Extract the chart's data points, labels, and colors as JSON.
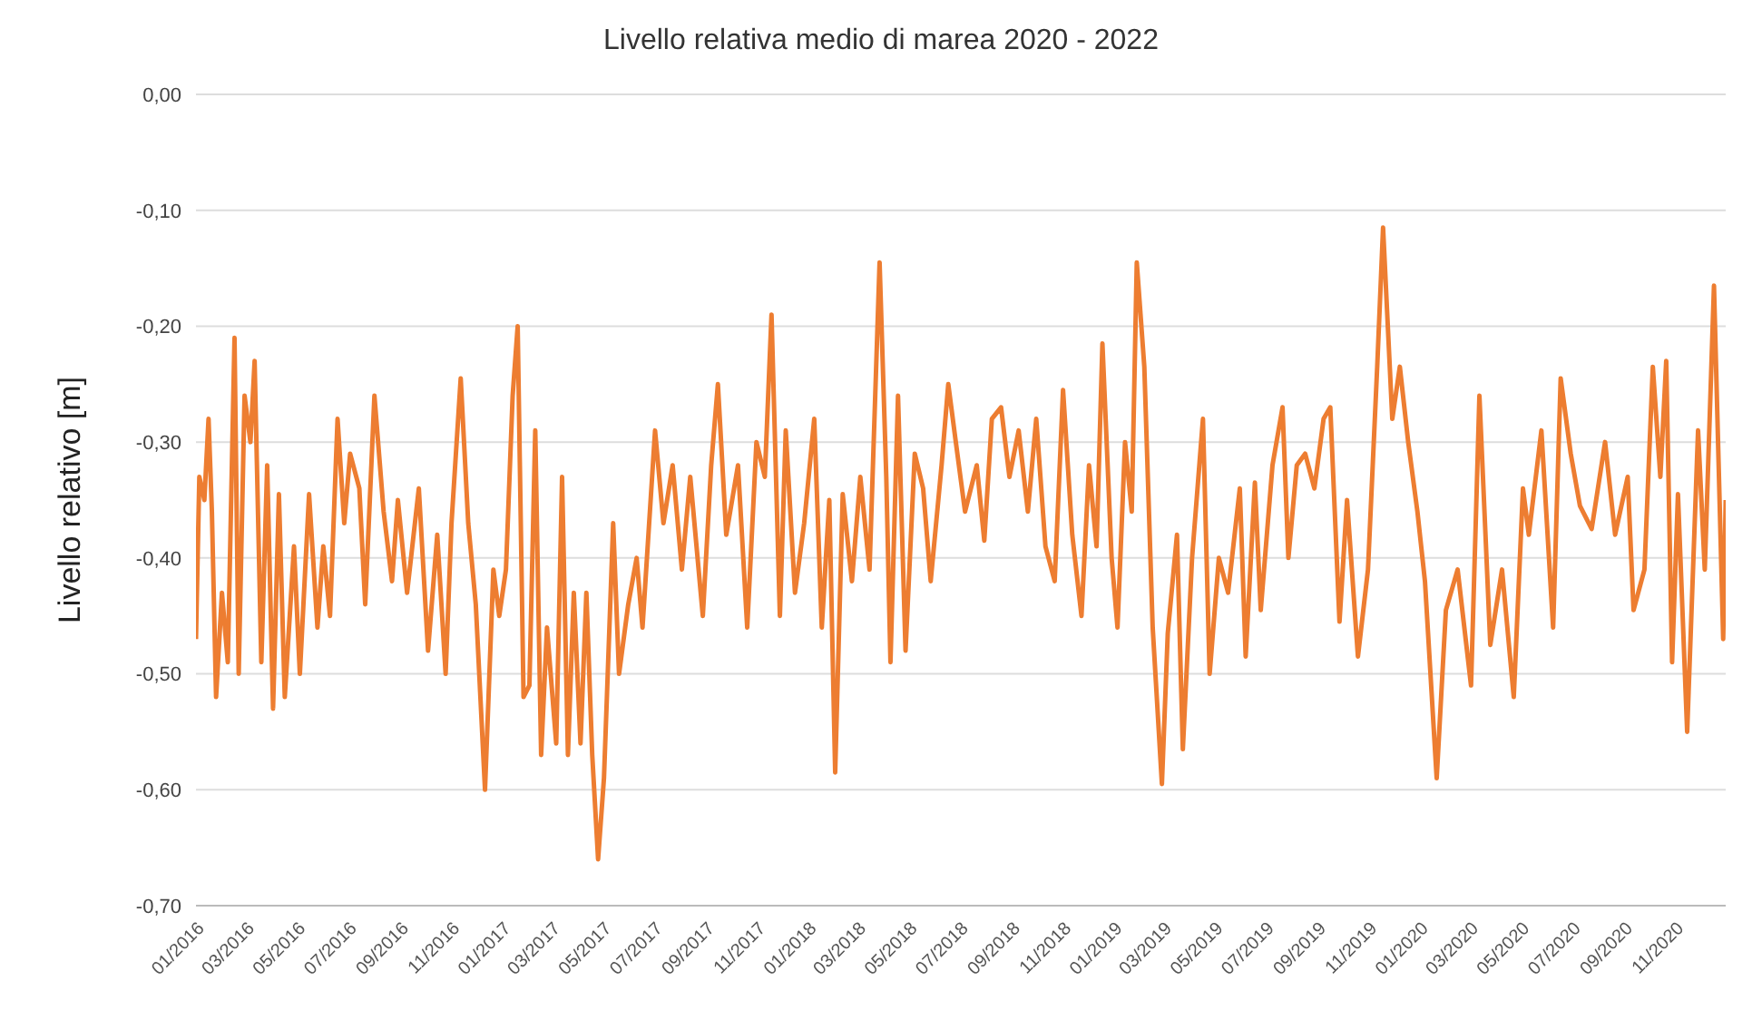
{
  "chart_data": {
    "type": "line",
    "title": "Livello relativa medio di marea 2020 - 2022",
    "ylabel": "Livello relativo [m]",
    "grid": "y",
    "marker": "none",
    "line_style": "solid",
    "ylim": [
      -0.7,
      0
    ],
    "yticks": [
      {
        "value": 0,
        "label": "0,00"
      },
      {
        "value": -0.1,
        "label": "-0,10"
      },
      {
        "value": -0.2,
        "label": "-0,20"
      },
      {
        "value": -0.3,
        "label": "-0,30"
      },
      {
        "value": -0.4,
        "label": "-0,40"
      },
      {
        "value": -0.5,
        "label": "-0,50"
      },
      {
        "value": -0.6,
        "label": "-0,60"
      },
      {
        "value": -0.7,
        "label": "-0,70"
      }
    ],
    "xlim": [
      "2016-01-01",
      "2020-12-31"
    ],
    "xticks": [
      {
        "value": "2016-01",
        "label": "01/2016"
      },
      {
        "value": "2016-03",
        "label": "03/2016"
      },
      {
        "value": "2016-05",
        "label": "05/2016"
      },
      {
        "value": "2016-07",
        "label": "07/2016"
      },
      {
        "value": "2016-09",
        "label": "09/2016"
      },
      {
        "value": "2016-11",
        "label": "11/2016"
      },
      {
        "value": "2017-01",
        "label": "01/2017"
      },
      {
        "value": "2017-03",
        "label": "03/2017"
      },
      {
        "value": "2017-05",
        "label": "05/2017"
      },
      {
        "value": "2017-07",
        "label": "07/2017"
      },
      {
        "value": "2017-09",
        "label": "09/2017"
      },
      {
        "value": "2017-11",
        "label": "11/2017"
      },
      {
        "value": "2018-01",
        "label": "01/2018"
      },
      {
        "value": "2018-03",
        "label": "03/2018"
      },
      {
        "value": "2018-05",
        "label": "05/2018"
      },
      {
        "value": "2018-07",
        "label": "07/2018"
      },
      {
        "value": "2018-09",
        "label": "09/2018"
      },
      {
        "value": "2018-11",
        "label": "11/2018"
      },
      {
        "value": "2019-01",
        "label": "01/2019"
      },
      {
        "value": "2019-03",
        "label": "03/2019"
      },
      {
        "value": "2019-05",
        "label": "05/2019"
      },
      {
        "value": "2019-07",
        "label": "07/2019"
      },
      {
        "value": "2019-09",
        "label": "09/2019"
      },
      {
        "value": "2019-11",
        "label": "11/2019"
      },
      {
        "value": "2020-01",
        "label": "01/2020"
      },
      {
        "value": "2020-03",
        "label": "03/2020"
      },
      {
        "value": "2020-05",
        "label": "05/2020"
      },
      {
        "value": "2020-07",
        "label": "07/2020"
      },
      {
        "value": "2020-09",
        "label": "09/2020"
      },
      {
        "value": "2020-11",
        "label": "11/2020"
      }
    ],
    "x": [
      "2016-01-01",
      "2016-01-05",
      "2016-01-11",
      "2016-01-16",
      "2016-01-20",
      "2016-01-25",
      "2016-02-01",
      "2016-02-08",
      "2016-02-16",
      "2016-02-21",
      "2016-02-28",
      "2016-03-06",
      "2016-03-11",
      "2016-03-19",
      "2016-03-26",
      "2016-04-02",
      "2016-04-09",
      "2016-04-16",
      "2016-04-27",
      "2016-05-04",
      "2016-05-15",
      "2016-05-25",
      "2016-06-01",
      "2016-06-09",
      "2016-06-18",
      "2016-06-26",
      "2016-07-03",
      "2016-07-14",
      "2016-07-21",
      "2016-08-01",
      "2016-08-12",
      "2016-08-22",
      "2016-08-29",
      "2016-09-09",
      "2016-09-23",
      "2016-10-04",
      "2016-10-15",
      "2016-10-25",
      "2016-11-01",
      "2016-11-12",
      "2016-11-21",
      "2016-11-30",
      "2016-12-11",
      "2016-12-21",
      "2016-12-28",
      "2017-01-05",
      "2017-01-13",
      "2017-01-19",
      "2017-01-26",
      "2017-02-02",
      "2017-02-09",
      "2017-02-16",
      "2017-02-23",
      "2017-03-06",
      "2017-03-13",
      "2017-03-20",
      "2017-03-27",
      "2017-04-04",
      "2017-04-11",
      "2017-04-18",
      "2017-04-25",
      "2017-05-02",
      "2017-05-13",
      "2017-05-20",
      "2017-05-31",
      "2017-06-10",
      "2017-06-17",
      "2017-07-02",
      "2017-07-12",
      "2017-07-23",
      "2017-08-03",
      "2017-08-13",
      "2017-08-28",
      "2017-09-07",
      "2017-09-15",
      "2017-09-25",
      "2017-10-09",
      "2017-10-20",
      "2017-10-31",
      "2017-11-10",
      "2017-11-18",
      "2017-11-28",
      "2017-12-05",
      "2017-12-16",
      "2017-12-27",
      "2018-01-08",
      "2018-01-17",
      "2018-01-26",
      "2018-02-02",
      "2018-02-11",
      "2018-02-22",
      "2018-03-04",
      "2018-03-15",
      "2018-03-27",
      "2018-04-04",
      "2018-04-09",
      "2018-04-18",
      "2018-04-27",
      "2018-05-08",
      "2018-05-18",
      "2018-05-27",
      "2018-06-09",
      "2018-06-17",
      "2018-06-26",
      "2018-07-07",
      "2018-07-21",
      "2018-07-30",
      "2018-08-08",
      "2018-08-19",
      "2018-08-29",
      "2018-09-09",
      "2018-09-20",
      "2018-09-30",
      "2018-10-11",
      "2018-10-22",
      "2018-11-01",
      "2018-11-12",
      "2018-11-23",
      "2018-12-02",
      "2018-12-11",
      "2018-12-18",
      "2018-12-29",
      "2019-01-05",
      "2019-01-14",
      "2019-01-22",
      "2019-01-28",
      "2019-02-06",
      "2019-02-16",
      "2019-02-27",
      "2019-03-06",
      "2019-03-17",
      "2019-03-24",
      "2019-04-04",
      "2019-04-17",
      "2019-04-25",
      "2019-05-06",
      "2019-05-17",
      "2019-05-31",
      "2019-06-07",
      "2019-06-18",
      "2019-06-25",
      "2019-07-09",
      "2019-07-21",
      "2019-07-28",
      "2019-08-07",
      "2019-08-17",
      "2019-08-28",
      "2019-09-08",
      "2019-09-16",
      "2019-09-27",
      "2019-10-06",
      "2019-10-19",
      "2019-10-31",
      "2019-11-11",
      "2019-11-18",
      "2019-11-29",
      "2019-12-08",
      "2019-12-18",
      "2019-12-29",
      "2020-01-07",
      "2020-01-21",
      "2020-02-01",
      "2020-02-15",
      "2020-03-02",
      "2020-03-12",
      "2020-03-25",
      "2020-04-08",
      "2020-04-22",
      "2020-05-03",
      "2020-05-10",
      "2020-05-25",
      "2020-06-08",
      "2020-06-17",
      "2020-06-29",
      "2020-07-10",
      "2020-07-24",
      "2020-08-09",
      "2020-08-21",
      "2020-09-05",
      "2020-09-12",
      "2020-09-25",
      "2020-10-05",
      "2020-10-14",
      "2020-10-21",
      "2020-10-28",
      "2020-11-04",
      "2020-11-15",
      "2020-11-28",
      "2020-12-06",
      "2020-12-17",
      "2020-12-28",
      "2020-12-31"
    ],
    "series": [
      {
        "color": "#ed7d31",
        "values": [
          -0.47,
          -0.33,
          -0.35,
          -0.28,
          -0.36,
          -0.52,
          -0.43,
          -0.49,
          -0.21,
          -0.5,
          -0.26,
          -0.3,
          -0.23,
          -0.49,
          -0.32,
          -0.53,
          -0.345,
          -0.52,
          -0.39,
          -0.5,
          -0.345,
          -0.46,
          -0.39,
          -0.45,
          -0.28,
          -0.37,
          -0.31,
          -0.34,
          -0.44,
          -0.26,
          -0.36,
          -0.42,
          -0.35,
          -0.43,
          -0.34,
          -0.48,
          -0.38,
          -0.5,
          -0.37,
          -0.245,
          -0.37,
          -0.44,
          -0.6,
          -0.41,
          -0.45,
          -0.41,
          -0.26,
          -0.2,
          -0.52,
          -0.51,
          -0.29,
          -0.57,
          -0.46,
          -0.56,
          -0.33,
          -0.57,
          -0.43,
          -0.56,
          -0.43,
          -0.57,
          -0.66,
          -0.59,
          -0.37,
          -0.5,
          -0.44,
          -0.4,
          -0.46,
          -0.29,
          -0.37,
          -0.32,
          -0.41,
          -0.33,
          -0.45,
          -0.32,
          -0.25,
          -0.38,
          -0.32,
          -0.46,
          -0.3,
          -0.33,
          -0.19,
          -0.45,
          -0.29,
          -0.43,
          -0.37,
          -0.28,
          -0.46,
          -0.35,
          -0.585,
          -0.345,
          -0.42,
          -0.33,
          -0.41,
          -0.145,
          -0.33,
          -0.49,
          -0.26,
          -0.48,
          -0.31,
          -0.34,
          -0.42,
          -0.32,
          -0.25,
          -0.3,
          -0.36,
          -0.32,
          -0.385,
          -0.28,
          -0.27,
          -0.33,
          -0.29,
          -0.36,
          -0.28,
          -0.39,
          -0.42,
          -0.255,
          -0.38,
          -0.45,
          -0.32,
          -0.39,
          -0.215,
          -0.4,
          -0.46,
          -0.3,
          -0.36,
          -0.145,
          -0.235,
          -0.46,
          -0.595,
          -0.465,
          -0.38,
          -0.565,
          -0.4,
          -0.28,
          -0.5,
          -0.4,
          -0.43,
          -0.34,
          -0.485,
          -0.335,
          -0.445,
          -0.32,
          -0.27,
          -0.4,
          -0.32,
          -0.31,
          -0.34,
          -0.28,
          -0.27,
          -0.455,
          -0.35,
          -0.485,
          -0.41,
          -0.235,
          -0.115,
          -0.28,
          -0.235,
          -0.3,
          -0.36,
          -0.42,
          -0.59,
          -0.445,
          -0.41,
          -0.51,
          -0.26,
          -0.475,
          -0.41,
          -0.52,
          -0.34,
          -0.38,
          -0.29,
          -0.46,
          -0.245,
          -0.31,
          -0.355,
          -0.375,
          -0.3,
          -0.38,
          -0.33,
          -0.445,
          -0.41,
          -0.235,
          -0.33,
          -0.23,
          -0.49,
          -0.345,
          -0.55,
          -0.29,
          -0.41,
          -0.165,
          -0.47,
          -0.35
        ]
      }
    ]
  }
}
